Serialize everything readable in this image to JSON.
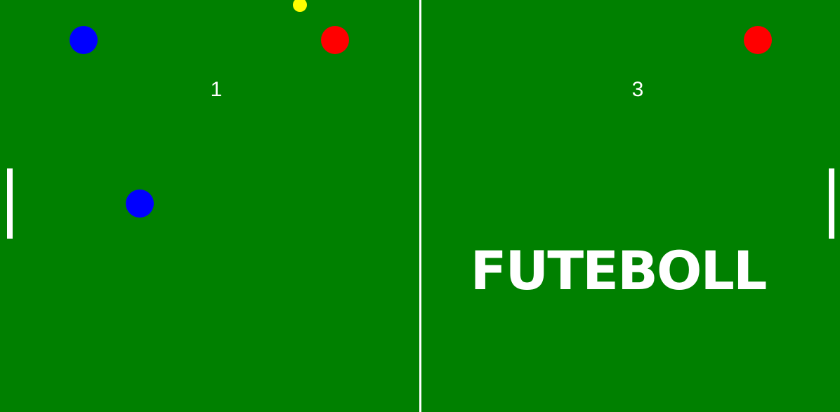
{
  "game": {
    "title": "FUTEBOLL",
    "score_left": "1",
    "score_right": "3"
  },
  "colors": {
    "field": "#008000",
    "lines": "#ffffff",
    "team_blue": "#0000ff",
    "team_red": "#ff0000",
    "ball": "#ffff00"
  }
}
